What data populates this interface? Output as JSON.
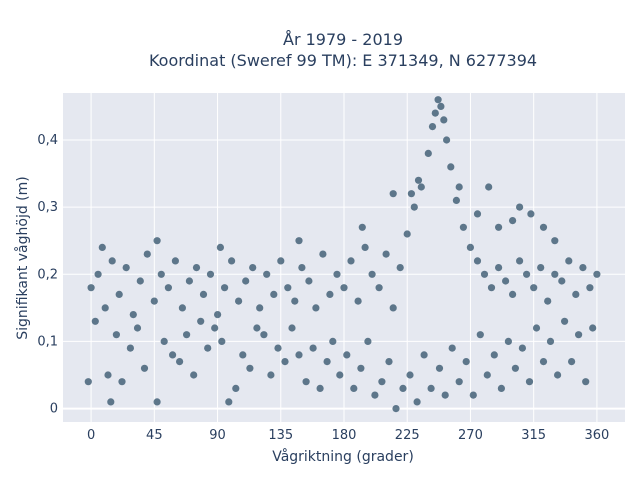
{
  "chart_data": {
    "type": "scatter",
    "title_line1": "År 1979 - 2019",
    "title_line2": "Koordinat (Sweref 99 TM): E 371349, N 6277394",
    "xlabel": "Vågriktning (grader)",
    "ylabel": "Signifikant våghöjd (m)",
    "xlim": [
      -20,
      380
    ],
    "ylim": [
      -0.02,
      0.47
    ],
    "grid": true,
    "x_ticks": [
      {
        "value": 0,
        "label": "0"
      },
      {
        "value": 45,
        "label": "45"
      },
      {
        "value": 90,
        "label": "90"
      },
      {
        "value": 135,
        "label": "135"
      },
      {
        "value": 180,
        "label": "180"
      },
      {
        "value": 225,
        "label": "225"
      },
      {
        "value": 270,
        "label": "270"
      },
      {
        "value": 315,
        "label": "315"
      },
      {
        "value": 360,
        "label": "360"
      }
    ],
    "y_ticks": [
      {
        "value": 0,
        "label": "0"
      },
      {
        "value": 0.1,
        "label": "0,1"
      },
      {
        "value": 0.2,
        "label": "0,2"
      },
      {
        "value": 0.3,
        "label": "0,3"
      },
      {
        "value": 0.4,
        "label": "0,4"
      }
    ],
    "marker_color": "#2f5068",
    "plot_bg": "#e5e8f0",
    "series": [
      {
        "points": [
          [
            0,
            0.18
          ],
          [
            5,
            0.2
          ],
          [
            10,
            0.15
          ],
          [
            15,
            0.22
          ],
          [
            20,
            0.17
          ],
          [
            25,
            0.21
          ],
          [
            30,
            0.14
          ],
          [
            35,
            0.19
          ],
          [
            40,
            0.23
          ],
          [
            45,
            0.16
          ],
          [
            50,
            0.2
          ],
          [
            55,
            0.18
          ],
          [
            60,
            0.22
          ],
          [
            65,
            0.15
          ],
          [
            70,
            0.19
          ],
          [
            75,
            0.21
          ],
          [
            80,
            0.17
          ],
          [
            85,
            0.2
          ],
          [
            90,
            0.14
          ],
          [
            95,
            0.18
          ],
          [
            100,
            0.22
          ],
          [
            105,
            0.16
          ],
          [
            110,
            0.19
          ],
          [
            115,
            0.21
          ],
          [
            120,
            0.15
          ],
          [
            125,
            0.2
          ],
          [
            130,
            0.17
          ],
          [
            135,
            0.22
          ],
          [
            140,
            0.18
          ],
          [
            145,
            0.16
          ],
          [
            150,
            0.21
          ],
          [
            155,
            0.19
          ],
          [
            160,
            0.15
          ],
          [
            165,
            0.23
          ],
          [
            170,
            0.17
          ],
          [
            175,
            0.2
          ],
          [
            180,
            0.18
          ],
          [
            185,
            0.22
          ],
          [
            190,
            0.16
          ],
          [
            195,
            0.24
          ],
          [
            200,
            0.2
          ],
          [
            205,
            0.18
          ],
          [
            210,
            0.23
          ],
          [
            215,
            0.15
          ],
          [
            220,
            0.21
          ],
          [
            225,
            0.26
          ],
          [
            230,
            0.3
          ],
          [
            235,
            0.33
          ],
          [
            240,
            0.38
          ],
          [
            243,
            0.42
          ],
          [
            245,
            0.44
          ],
          [
            247,
            0.46
          ],
          [
            249,
            0.45
          ],
          [
            251,
            0.43
          ],
          [
            253,
            0.4
          ],
          [
            256,
            0.36
          ],
          [
            260,
            0.31
          ],
          [
            265,
            0.27
          ],
          [
            270,
            0.24
          ],
          [
            275,
            0.22
          ],
          [
            280,
            0.2
          ],
          [
            285,
            0.18
          ],
          [
            290,
            0.21
          ],
          [
            295,
            0.19
          ],
          [
            300,
            0.17
          ],
          [
            305,
            0.22
          ],
          [
            310,
            0.2
          ],
          [
            315,
            0.18
          ],
          [
            320,
            0.21
          ],
          [
            325,
            0.16
          ],
          [
            330,
            0.2
          ],
          [
            335,
            0.19
          ],
          [
            340,
            0.22
          ],
          [
            345,
            0.17
          ],
          [
            350,
            0.21
          ],
          [
            355,
            0.18
          ],
          [
            360,
            0.2
          ],
          [
            3,
            0.13
          ],
          [
            8,
            0.24
          ],
          [
            12,
            0.05
          ],
          [
            18,
            0.11
          ],
          [
            22,
            0.04
          ],
          [
            28,
            0.09
          ],
          [
            33,
            0.12
          ],
          [
            38,
            0.06
          ],
          [
            47,
            0.01
          ],
          [
            52,
            0.1
          ],
          [
            58,
            0.08
          ],
          [
            63,
            0.07
          ],
          [
            68,
            0.11
          ],
          [
            73,
            0.05
          ],
          [
            78,
            0.13
          ],
          [
            83,
            0.09
          ],
          [
            88,
            0.12
          ],
          [
            93,
            0.1
          ],
          [
            98,
            0.01
          ],
          [
            103,
            0.03
          ],
          [
            108,
            0.08
          ],
          [
            113,
            0.06
          ],
          [
            118,
            0.12
          ],
          [
            123,
            0.11
          ],
          [
            128,
            0.05
          ],
          [
            133,
            0.09
          ],
          [
            138,
            0.07
          ],
          [
            143,
            0.12
          ],
          [
            148,
            0.08
          ],
          [
            153,
            0.04
          ],
          [
            158,
            0.09
          ],
          [
            163,
            0.03
          ],
          [
            168,
            0.07
          ],
          [
            172,
            0.1
          ],
          [
            177,
            0.05
          ],
          [
            182,
            0.08
          ],
          [
            187,
            0.03
          ],
          [
            192,
            0.06
          ],
          [
            197,
            0.1
          ],
          [
            202,
            0.02
          ],
          [
            207,
            0.04
          ],
          [
            212,
            0.07
          ],
          [
            217,
            0.0
          ],
          [
            222,
            0.03
          ],
          [
            227,
            0.05
          ],
          [
            232,
            0.01
          ],
          [
            237,
            0.08
          ],
          [
            242,
            0.03
          ],
          [
            248,
            0.06
          ],
          [
            252,
            0.02
          ],
          [
            257,
            0.09
          ],
          [
            262,
            0.04
          ],
          [
            267,
            0.07
          ],
          [
            272,
            0.02
          ],
          [
            277,
            0.11
          ],
          [
            282,
            0.05
          ],
          [
            287,
            0.08
          ],
          [
            292,
            0.03
          ],
          [
            297,
            0.1
          ],
          [
            302,
            0.06
          ],
          [
            307,
            0.09
          ],
          [
            312,
            0.04
          ],
          [
            317,
            0.12
          ],
          [
            322,
            0.07
          ],
          [
            327,
            0.1
          ],
          [
            332,
            0.05
          ],
          [
            337,
            0.13
          ],
          [
            342,
            0.07
          ],
          [
            347,
            0.11
          ],
          [
            352,
            0.04
          ],
          [
            357,
            0.12
          ],
          [
            -2,
            0.04
          ],
          [
            14,
            0.01
          ],
          [
            47,
            0.25
          ],
          [
            92,
            0.24
          ],
          [
            148,
            0.25
          ],
          [
            193,
            0.27
          ],
          [
            215,
            0.32
          ],
          [
            228,
            0.32
          ],
          [
            233,
            0.34
          ],
          [
            262,
            0.33
          ],
          [
            275,
            0.29
          ],
          [
            283,
            0.33
          ],
          [
            290,
            0.27
          ],
          [
            300,
            0.28
          ],
          [
            305,
            0.3
          ],
          [
            313,
            0.29
          ],
          [
            322,
            0.27
          ],
          [
            330,
            0.25
          ]
        ]
      }
    ]
  }
}
